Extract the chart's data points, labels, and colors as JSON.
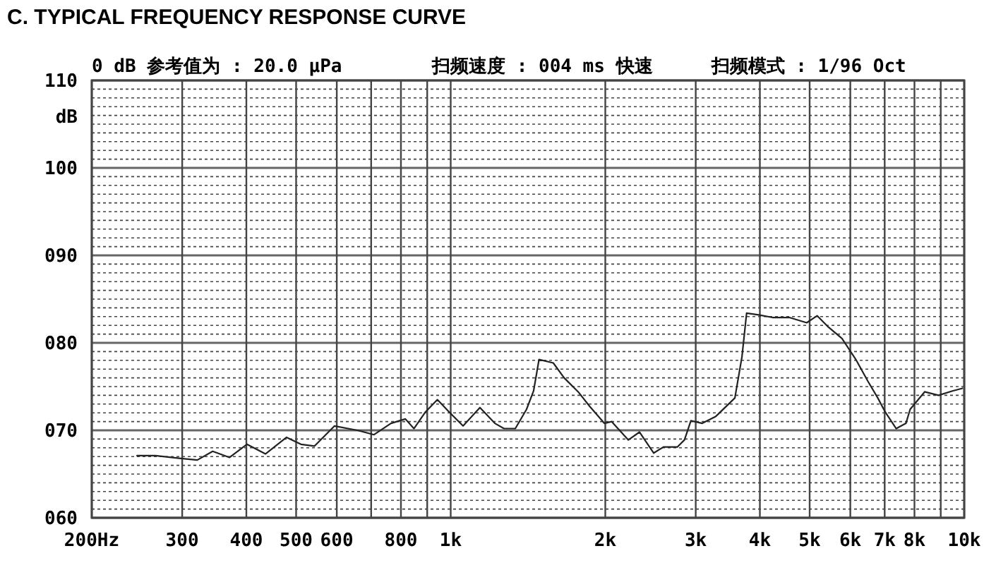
{
  "chart_data": {
    "type": "line",
    "title": "C. TYPICAL FREQUENCY RESPONSE CURVE",
    "ylabel": "dB",
    "annotations": [
      "0 dB 参考值为 : 20.0 μPa",
      "扫频速度 : 004 ms 快速",
      "扫频模式 : 1/96  Oct"
    ],
    "log": "x",
    "grid": true,
    "marker": "none",
    "line_style": "solid",
    "xlim": [
      200,
      10000
    ],
    "xticks": [
      {
        "value": 200,
        "label": "200Hz"
      },
      300,
      400,
      500,
      600,
      {
        "value": 700,
        "label": null
      },
      800,
      {
        "value": 900,
        "label": null
      },
      {
        "value": 1000,
        "label": "1k"
      },
      {
        "value": 2000,
        "label": "2k"
      },
      {
        "value": 3000,
        "label": "3k"
      },
      {
        "value": 4000,
        "label": "4k"
      },
      {
        "value": 5000,
        "label": "5k"
      },
      {
        "value": 6000,
        "label": "6k"
      },
      {
        "value": 7000,
        "label": "7k"
      },
      {
        "value": 8000,
        "label": "8k"
      },
      {
        "value": 9000,
        "label": null
      },
      {
        "value": 10000,
        "label": "10k"
      }
    ],
    "ylim": [
      60,
      110
    ],
    "yticks": [
      {
        "value": 60,
        "label": "060"
      },
      {
        "value": 61,
        "label": null
      },
      {
        "value": 62,
        "label": null
      },
      {
        "value": 63,
        "label": null
      },
      {
        "value": 64,
        "label": null
      },
      {
        "value": 65,
        "label": null
      },
      {
        "value": 66,
        "label": null
      },
      {
        "value": 67,
        "label": null
      },
      {
        "value": 68,
        "label": null
      },
      {
        "value": 69,
        "label": null
      },
      {
        "value": 70,
        "label": "070"
      },
      {
        "value": 71,
        "label": null
      },
      {
        "value": 72,
        "label": null
      },
      {
        "value": 73,
        "label": null
      },
      {
        "value": 74,
        "label": null
      },
      {
        "value": 75,
        "label": null
      },
      {
        "value": 76,
        "label": null
      },
      {
        "value": 77,
        "label": null
      },
      {
        "value": 78,
        "label": null
      },
      {
        "value": 79,
        "label": null
      },
      {
        "value": 80,
        "label": "080"
      },
      {
        "value": 81,
        "label": null
      },
      {
        "value": 82,
        "label": null
      },
      {
        "value": 83,
        "label": null
      },
      {
        "value": 84,
        "label": null
      },
      {
        "value": 85,
        "label": null
      },
      {
        "value": 86,
        "label": null
      },
      {
        "value": 87,
        "label": null
      },
      {
        "value": 88,
        "label": null
      },
      {
        "value": 89,
        "label": null
      },
      {
        "value": 90,
        "label": "090"
      },
      {
        "value": 91,
        "label": null
      },
      {
        "value": 92,
        "label": null
      },
      {
        "value": 93,
        "label": null
      },
      {
        "value": 94,
        "label": null
      },
      {
        "value": 95,
        "label": null
      },
      {
        "value": 96,
        "label": null
      },
      {
        "value": 97,
        "label": null
      },
      {
        "value": 98,
        "label": null
      },
      {
        "value": 99,
        "label": null
      },
      {
        "value": 100,
        "label": "100"
      },
      {
        "value": 101,
        "label": null
      },
      {
        "value": 102,
        "label": null
      },
      {
        "value": 103,
        "label": null
      },
      {
        "value": 104,
        "label": null
      },
      {
        "value": 105,
        "label": null
      },
      {
        "value": 106,
        "label": null
      },
      {
        "value": 107,
        "label": null
      },
      {
        "value": 108,
        "label": null
      },
      {
        "value": 109,
        "label": null
      },
      {
        "value": 110,
        "label": "110"
      }
    ],
    "x": [
      245,
      266,
      296,
      321,
      344,
      371,
      401,
      436,
      479,
      511,
      543,
      594,
      658,
      709,
      765,
      816,
      848,
      893,
      942,
      993,
      1057,
      1140,
      1219,
      1270,
      1336,
      1405,
      1450,
      1486,
      1584,
      1663,
      1771,
      1867,
      1992,
      2057,
      2218,
      2331,
      2484,
      2596,
      2764,
      2852,
      2936,
      3089,
      3284,
      3576,
      3691,
      3769,
      3978,
      4232,
      4563,
      4935,
      5170,
      5439,
      5781,
      6150,
      6493,
      6787,
      7015,
      7372,
      7700,
      7846,
      8373,
      8913,
      9482,
      9915
    ],
    "series": [
      {
        "color": "#222222",
        "values": [
          67.1,
          67.1,
          66.8,
          66.6,
          67.6,
          66.9,
          68.4,
          67.3,
          69.2,
          68.4,
          68.2,
          70.5,
          70.0,
          69.5,
          70.8,
          71.3,
          70.2,
          72.1,
          73.5,
          72.1,
          70.5,
          72.6,
          70.8,
          70.2,
          70.2,
          72.4,
          74.5,
          78.1,
          77.7,
          76.0,
          74.4,
          72.7,
          70.8,
          71.0,
          68.9,
          69.8,
          67.4,
          68.1,
          68.1,
          68.9,
          71.1,
          70.8,
          71.6,
          73.7,
          78.4,
          83.4,
          83.2,
          82.9,
          82.9,
          82.3,
          83.1,
          81.8,
          80.5,
          78.1,
          75.6,
          73.7,
          72.1,
          70.2,
          70.8,
          72.4,
          74.4,
          74.0,
          74.5,
          74.8
        ]
      }
    ]
  }
}
